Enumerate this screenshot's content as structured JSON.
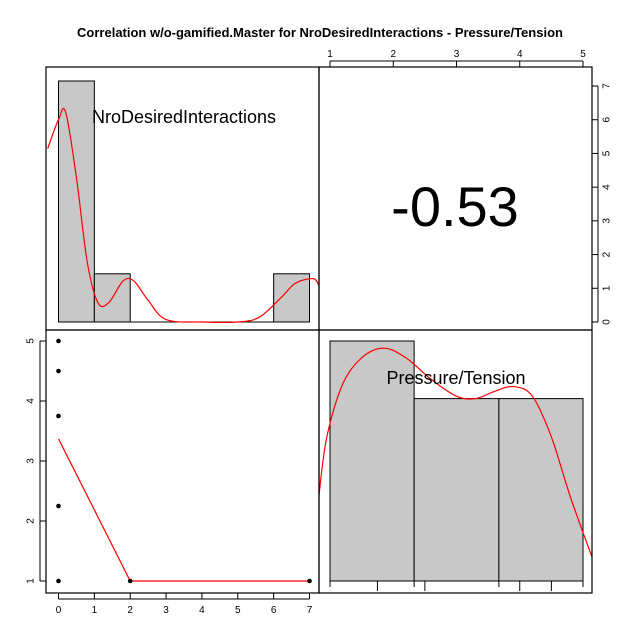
{
  "title": "Correlation w/o-gamified.Master for NroDesiredInteractions - Pressure/Tension",
  "chart_data": {
    "type": "scatter-matrix",
    "variables": [
      "NroDesiredInteractions",
      "Pressure/Tension"
    ],
    "correlation": {
      "label": "-0.53",
      "value": -0.53
    },
    "colors": {
      "smooth": "#ff0000",
      "bar_fill": "#c8c8c8",
      "points": "#000000"
    },
    "histograms": [
      {
        "variable": "NroDesiredInteractions",
        "bins": [
          {
            "from": 0,
            "to": 1,
            "height": 1.0
          },
          {
            "from": 1,
            "to": 2,
            "height": 0.2
          },
          {
            "from": 2,
            "to": 6,
            "height": 0.0
          },
          {
            "from": 6,
            "to": 7,
            "height": 0.2
          }
        ],
        "density_curve": [
          [
            -0.3,
            0.72
          ],
          [
            0,
            0.84
          ],
          [
            0.2,
            0.87
          ],
          [
            0.5,
            0.6
          ],
          [
            0.8,
            0.25
          ],
          [
            1.1,
            0.08
          ],
          [
            1.4,
            0.08
          ],
          [
            1.8,
            0.17
          ],
          [
            2.1,
            0.17
          ],
          [
            2.5,
            0.09
          ],
          [
            3,
            0.01
          ],
          [
            4,
            0.0
          ],
          [
            5,
            0.0
          ],
          [
            5.6,
            0.02
          ],
          [
            6.2,
            0.1
          ],
          [
            6.6,
            0.16
          ],
          [
            7.1,
            0.18
          ],
          [
            7.3,
            0.15
          ]
        ]
      },
      {
        "variable": "Pressure/Tension",
        "bins": [
          {
            "from": 1.0,
            "to": 2.33,
            "height": 1.0
          },
          {
            "from": 2.33,
            "to": 3.67,
            "height": 0.76
          },
          {
            "from": 3.67,
            "to": 5.0,
            "height": 0.76
          }
        ],
        "density_curve": [
          [
            0.75,
            0.36
          ],
          [
            0.95,
            0.6
          ],
          [
            1.2,
            0.82
          ],
          [
            1.5,
            0.93
          ],
          [
            1.85,
            0.97
          ],
          [
            2.2,
            0.93
          ],
          [
            2.6,
            0.84
          ],
          [
            3.0,
            0.77
          ],
          [
            3.3,
            0.76
          ],
          [
            3.6,
            0.79
          ],
          [
            3.9,
            0.81
          ],
          [
            4.2,
            0.77
          ],
          [
            4.5,
            0.6
          ],
          [
            4.8,
            0.35
          ],
          [
            5.2,
            0.1
          ]
        ]
      }
    ],
    "scatter": {
      "x_var": "NroDesiredInteractions",
      "y_var": "Pressure/Tension",
      "points": [
        [
          0,
          5
        ],
        [
          0,
          4.5
        ],
        [
          0,
          3.75
        ],
        [
          0,
          2.25
        ],
        [
          0,
          1
        ],
        [
          2,
          1
        ],
        [
          7,
          1
        ]
      ],
      "smooth_line": [
        [
          0,
          3.37
        ],
        [
          2,
          1
        ],
        [
          7,
          1
        ]
      ],
      "xlim": [
        -0.3,
        7.4
      ],
      "ylim": [
        0.78,
        5.15
      ]
    },
    "axes": {
      "top_x_ticks": [
        "1",
        "2",
        "3",
        "4",
        "5"
      ],
      "right_y_ticks": [
        "0",
        "1",
        "2",
        "3",
        "4",
        "5",
        "6",
        "7"
      ],
      "left_y_ticks": [
        "1",
        "2",
        "3",
        "4",
        "5"
      ],
      "bottom_x_ticks": [
        "0",
        "1",
        "2",
        "3",
        "4",
        "5",
        "6",
        "7"
      ]
    },
    "grid": false
  }
}
